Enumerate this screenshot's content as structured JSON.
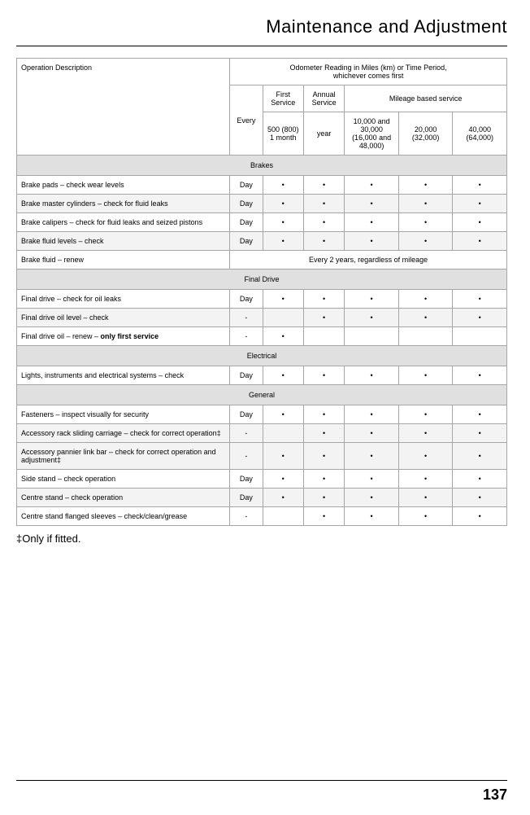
{
  "page_title": "Maintenance and Adjustment",
  "page_number": "137",
  "footnote": "‡Only if fitted.",
  "colors": {
    "background": "#ffffff",
    "text": "#000000",
    "border": "#a6a6a6",
    "section_bg": "#e0e0e0",
    "stripe_bg": "#f3f3f3"
  },
  "fonts": {
    "title_size_pt": 22,
    "body_size_pt": 9,
    "footnote_size_pt": 13,
    "page_number_size_pt": 18
  },
  "table": {
    "type": "table",
    "header": {
      "operation_desc": "Operation Description",
      "odometer_heading": "Odometer Reading in Miles (km) or Time Period,",
      "odometer_sub": "whichever comes first",
      "first_service": "First Service",
      "annual_service": "Annual Service",
      "mileage_based": "Mileage based service",
      "every": "Every",
      "col_first": "500 (800) 1 month",
      "col_annual": "year",
      "col_m1": "10,000 and 30,000 (16,000 and 48,000)",
      "col_m2": "20,000 (32,000)",
      "col_m3": "40,000 (64,000)"
    },
    "sections": [
      {
        "title": "Brakes",
        "rows": [
          {
            "desc": "Brake pads – check wear levels",
            "every": "Day",
            "c1": "•",
            "c2": "•",
            "c3": "•",
            "c4": "•",
            "c5": "•",
            "stripe": false
          },
          {
            "desc": "Brake master cylinders – check for fluid leaks",
            "every": "Day",
            "c1": "•",
            "c2": "•",
            "c3": "•",
            "c4": "•",
            "c5": "•",
            "stripe": true
          },
          {
            "desc": "Brake calipers – check for fluid leaks and seized pistons",
            "every": "Day",
            "c1": "•",
            "c2": "•",
            "c3": "•",
            "c4": "•",
            "c5": "•",
            "stripe": false
          },
          {
            "desc": "Brake fluid levels – check",
            "every": "Day",
            "c1": "•",
            "c2": "•",
            "c3": "•",
            "c4": "•",
            "c5": "•",
            "stripe": true
          },
          {
            "desc": "Brake fluid – renew",
            "span": "Every 2 years, regardless of mileage",
            "stripe": false
          }
        ]
      },
      {
        "title": "Final Drive",
        "rows": [
          {
            "desc": "Final drive – check for oil leaks",
            "every": "Day",
            "c1": "•",
            "c2": "•",
            "c3": "•",
            "c4": "•",
            "c5": "•",
            "stripe": false
          },
          {
            "desc": "Final drive oil level – check",
            "every": "-",
            "c1": "",
            "c2": "•",
            "c3": "•",
            "c4": "•",
            "c5": "•",
            "stripe": true
          },
          {
            "desc_html": "Final drive oil – renew – <span class=\"bold-part\">only first service</span>",
            "every": "-",
            "c1": "•",
            "c2": "",
            "c3": "",
            "c4": "",
            "c5": "",
            "stripe": false
          }
        ]
      },
      {
        "title": "Electrical",
        "rows": [
          {
            "desc": "Lights, instruments and electrical systems – check",
            "every": "Day",
            "c1": "•",
            "c2": "•",
            "c3": "•",
            "c4": "•",
            "c5": "•",
            "stripe": false
          }
        ]
      },
      {
        "title": "General",
        "rows": [
          {
            "desc": "Fasteners – inspect visually for security",
            "every": "Day",
            "c1": "•",
            "c2": "•",
            "c3": "•",
            "c4": "•",
            "c5": "•",
            "stripe": false
          },
          {
            "desc": "Accessory rack sliding carriage – check for correct operation‡",
            "every": "-",
            "c1": "",
            "c2": "•",
            "c3": "•",
            "c4": "•",
            "c5": "•",
            "stripe": true
          },
          {
            "desc": "Accessory pannier link bar – check for correct operation and adjustment‡",
            "every": "-",
            "c1": "•",
            "c2": "•",
            "c3": "•",
            "c4": "•",
            "c5": "•",
            "stripe": true
          },
          {
            "desc": "Side stand – check operation",
            "every": "Day",
            "c1": "•",
            "c2": "•",
            "c3": "•",
            "c4": "•",
            "c5": "•",
            "stripe": false
          },
          {
            "desc": "Centre stand – check operation",
            "every": "Day",
            "c1": "•",
            "c2": "•",
            "c3": "•",
            "c4": "•",
            "c5": "•",
            "stripe": true
          },
          {
            "desc": "Centre stand flanged sleeves – check/clean/grease",
            "every": "-",
            "c1": "",
            "c2": "•",
            "c3": "•",
            "c4": "•",
            "c5": "•",
            "stripe": false
          }
        ]
      }
    ]
  }
}
